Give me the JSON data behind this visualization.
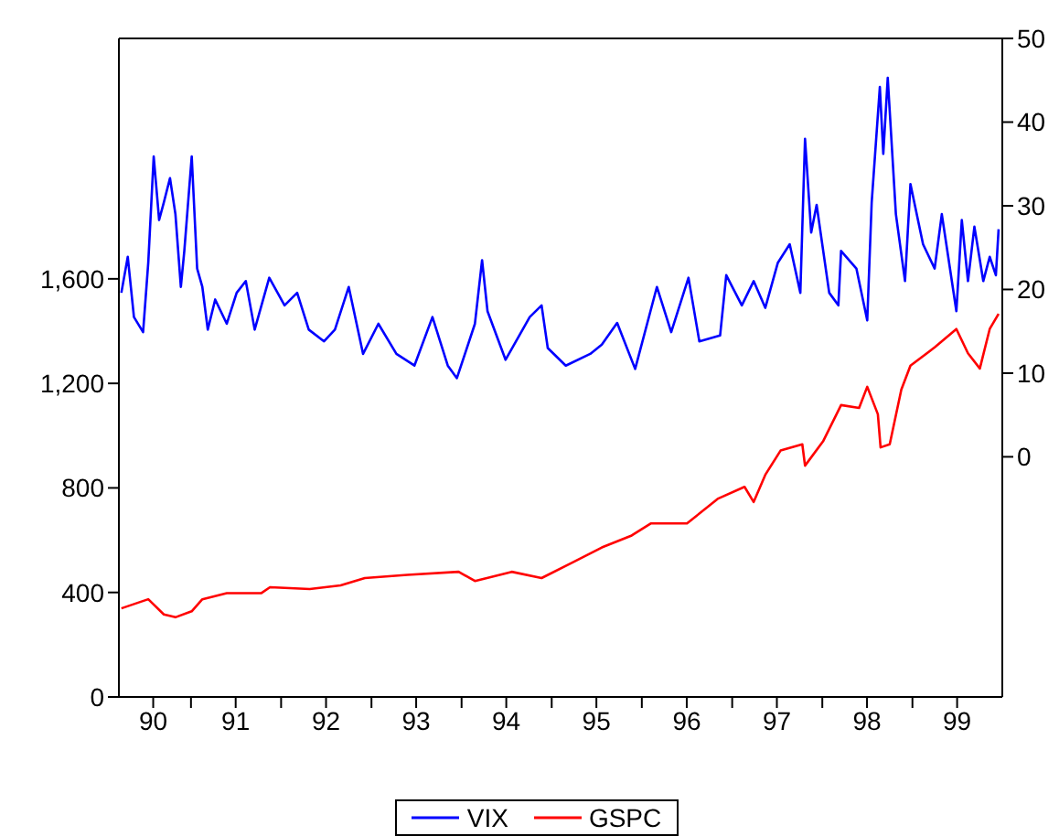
{
  "chart_data": {
    "type": "line",
    "xlim": [
      "1990-03-15",
      "1999-12-31"
    ],
    "xticks": [
      {
        "value": "1991-01-01",
        "label": null
      },
      {
        "value": "1992-01-01",
        "label": null
      },
      {
        "value": "1993-01-01",
        "label": null
      },
      {
        "value": "1994-01-01",
        "label": null
      },
      {
        "value": "1995-01-01",
        "label": null
      },
      {
        "value": "1996-01-01",
        "label": null
      },
      {
        "value": "1997-01-01",
        "label": null
      },
      {
        "value": "1998-01-01",
        "label": null
      },
      {
        "value": "1999-01-01",
        "label": null
      },
      {
        "value": "1990-08-01",
        "label": "90"
      },
      {
        "value": "1991-07-01",
        "label": "91"
      },
      {
        "value": "1992-07-01",
        "label": "92"
      },
      {
        "value": "1993-07-01",
        "label": "93"
      },
      {
        "value": "1994-07-01",
        "label": "94"
      },
      {
        "value": "1995-07-01",
        "label": "95"
      },
      {
        "value": "1996-07-01",
        "label": "96"
      },
      {
        "value": "1997-07-01",
        "label": "97"
      },
      {
        "value": "1998-07-01",
        "label": "98"
      },
      {
        "value": "1999-07-01",
        "label": "99"
      }
    ],
    "ylim": [
      0,
      2520
    ],
    "yticks": [
      0,
      400,
      800,
      {
        "value": 1200,
        "label": "1,200"
      },
      {
        "value": 1600,
        "label": "1,600"
      }
    ],
    "y2lim": [
      -28.7,
      50
    ],
    "y2ticks": [
      0,
      10,
      20,
      30,
      40,
      50
    ],
    "grid": false,
    "legend": "bottom",
    "marker": "none",
    "line_style": "solid",
    "series": [
      {
        "name": "VIX",
        "color": "#0000ff",
        "axis": "y2",
        "x": [
          "1990-03-25",
          "1990-04-20",
          "1990-05-15",
          "1990-06-21",
          "1990-07-12",
          "1990-08-03",
          "1990-08-25",
          "1990-09-13",
          "1990-10-08",
          "1990-10-30",
          "1990-11-21",
          "1990-12-05",
          "1991-01-04",
          "1991-01-26",
          "1991-02-16",
          "1991-03-10",
          "1991-04-09",
          "1991-05-26",
          "1991-07-05",
          "1991-08-11",
          "1991-09-16",
          "1991-11-14",
          "1992-01-15",
          "1992-03-06",
          "1992-04-22",
          "1992-06-23",
          "1992-08-06",
          "1992-10-01",
          "1992-11-28",
          "1993-01-29",
          "1993-04-12",
          "1993-06-24",
          "1993-09-05",
          "1993-11-06",
          "1993-12-13",
          "1994-02-24",
          "1994-03-25",
          "1994-04-16",
          "1994-06-28",
          "1994-10-04",
          "1994-11-21",
          "1994-12-16",
          "1995-02-27",
          "1995-06-06",
          "1995-07-23",
          "1995-09-23",
          "1995-12-05",
          "1996-03-02",
          "1996-04-29",
          "1996-07-08",
          "1996-08-21",
          "1996-11-13",
          "1996-12-08",
          "1997-02-09",
          "1997-03-29",
          "1997-05-15",
          "1997-07-05",
          "1997-08-22",
          "1997-10-04",
          "1997-10-23",
          "1997-11-17",
          "1997-12-09",
          "1998-01-29",
          "1998-03-07",
          "1998-03-18",
          "1998-05-19",
          "1998-07-02",
          "1998-07-20",
          "1998-08-22",
          "1998-09-05",
          "1998-09-23",
          "1998-10-26",
          "1998-12-02",
          "1998-12-24",
          "1999-02-13",
          "1999-04-01",
          "1999-04-30",
          "1999-06-28",
          "1999-07-20",
          "1999-08-14",
          "1999-09-09",
          "1999-10-15",
          "1999-11-10",
          "1999-12-05",
          "1999-12-16"
        ],
        "values": [
          19.6,
          23.9,
          16.7,
          14.9,
          23.2,
          35.9,
          28.3,
          30.4,
          33.3,
          29,
          20.3,
          24.6,
          35.9,
          22.5,
          20.3,
          15.2,
          18.8,
          15.9,
          19.6,
          21,
          15.2,
          21.4,
          18.1,
          19.6,
          15.2,
          13.8,
          15.2,
          20.3,
          12.3,
          15.9,
          12.3,
          10.9,
          16.7,
          10.9,
          9.4,
          15.9,
          23.5,
          17.4,
          11.6,
          16.7,
          18.1,
          13,
          10.9,
          12.3,
          13.4,
          16,
          10.5,
          20.3,
          14.9,
          21.4,
          13.8,
          14.5,
          21.7,
          18.1,
          21,
          17.8,
          23.2,
          25.4,
          19.6,
          38,
          26.8,
          30.1,
          19.6,
          18.1,
          24.6,
          22.5,
          16.3,
          30.4,
          44.2,
          36.2,
          45.3,
          29,
          21,
          32.6,
          25.4,
          22.5,
          29,
          17.4,
          28.3,
          21,
          27.5,
          21,
          23.9,
          21.7,
          27.2
        ]
      },
      {
        "name": "GSPC",
        "color": "#ff0000",
        "x": [
          "1990-03-25",
          "1990-07-12",
          "1990-09-13",
          "1990-10-30",
          "1991-01-04",
          "1991-02-16",
          "1991-05-26",
          "1991-10-12",
          "1991-11-17",
          "1992-04-26",
          "1992-08-29",
          "1992-12-05",
          "1993-05-26",
          "1993-12-20",
          "1994-02-24",
          "1994-07-23",
          "1994-11-21",
          "1995-03-25",
          "1995-07-23",
          "1995-11-21",
          "1996-02-06",
          "1996-07-02",
          "1996-11-03",
          "1997-02-20",
          "1997-03-29",
          "1997-05-15",
          "1997-07-16",
          "1997-10-12",
          "1997-10-23",
          "1998-01-04",
          "1998-03-18",
          "1998-05-30",
          "1998-07-02",
          "1998-08-14",
          "1998-08-25",
          "1998-10-01",
          "1998-11-17",
          "1998-12-24",
          "1999-04-01",
          "1999-06-28",
          "1999-08-14",
          "1999-10-01",
          "1999-11-10",
          "1999-12-16"
        ],
        "values": [
          339,
          374,
          316,
          305,
          328,
          374,
          397,
          397,
          420,
          413,
          427,
          455,
          467,
          479,
          444,
          479,
          455,
          514,
          572,
          618,
          664,
          664,
          758,
          804,
          746,
          850,
          943,
          967,
          885,
          978,
          1117,
          1106,
          1187,
          1082,
          955,
          967,
          1176,
          1268,
          1338,
          1408,
          1315,
          1257,
          1408,
          1466
        ]
      }
    ]
  }
}
